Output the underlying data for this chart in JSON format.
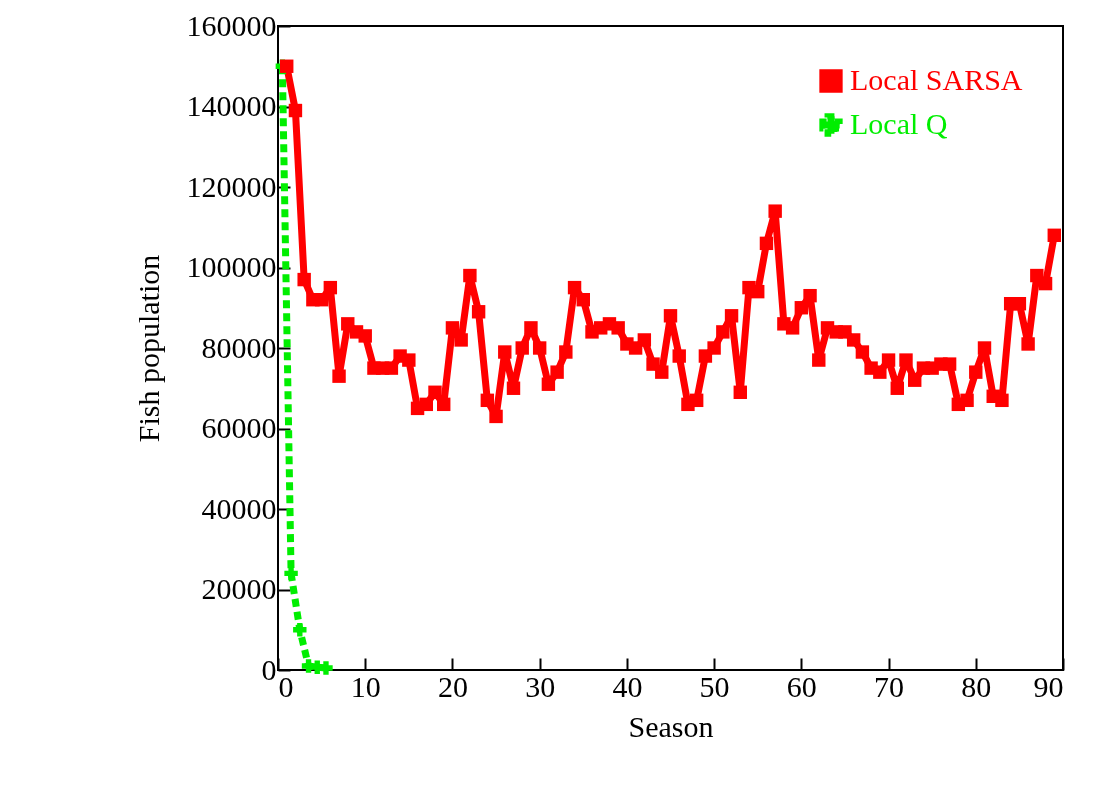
{
  "chart_data": {
    "type": "line",
    "xlabel": "Season",
    "ylabel": "Fish population",
    "xlim": [
      0,
      90
    ],
    "xticks": [
      0,
      10,
      20,
      30,
      40,
      50,
      60,
      70,
      80,
      90
    ],
    "ylim": [
      0,
      160000
    ],
    "yticks": [
      0,
      20000,
      40000,
      60000,
      80000,
      100000,
      120000,
      140000,
      160000
    ],
    "legend": "top right",
    "series": [
      {
        "name": "Local SARSA",
        "color": "#ff0000",
        "line_style": "solid",
        "marker": "square",
        "x": [
          1,
          2,
          3,
          4,
          5,
          6,
          7,
          8,
          9,
          10,
          11,
          12,
          13,
          14,
          15,
          16,
          17,
          18,
          19,
          20,
          21,
          22,
          23,
          24,
          25,
          26,
          27,
          28,
          29,
          30,
          31,
          32,
          33,
          34,
          35,
          36,
          37,
          38,
          39,
          40,
          41,
          42,
          43,
          44,
          45,
          46,
          47,
          48,
          49,
          50,
          51,
          52,
          53,
          54,
          55,
          56,
          57,
          58,
          59,
          60,
          61,
          62,
          63,
          64,
          65,
          66,
          67,
          68,
          69,
          70,
          71,
          72,
          73,
          74,
          75,
          76,
          77,
          78,
          79,
          80,
          81,
          82,
          83,
          84,
          85,
          86,
          87,
          88,
          89
        ],
        "values": [
          150000,
          139000,
          97000,
          92000,
          92000,
          95000,
          73000,
          86000,
          84000,
          83000,
          75000,
          75000,
          75000,
          78000,
          77000,
          65000,
          66000,
          69000,
          66000,
          85000,
          82000,
          98000,
          89000,
          67000,
          63000,
          79000,
          70000,
          80000,
          85000,
          80000,
          71000,
          74000,
          79000,
          95000,
          92000,
          84000,
          85000,
          86000,
          85000,
          81000,
          80000,
          82000,
          76000,
          74000,
          88000,
          78000,
          66000,
          67000,
          78000,
          80000,
          84000,
          88000,
          69000,
          95000,
          94000,
          106000,
          114000,
          86000,
          85000,
          90000,
          93000,
          77000,
          85000,
          84000,
          84000,
          82000,
          79000,
          75000,
          74000,
          77000,
          70000,
          77000,
          72000,
          75000,
          75000,
          76000,
          76000,
          66000,
          67000,
          74000,
          80000,
          68000,
          67000,
          91000,
          91000,
          81000,
          98000,
          96000,
          108000
        ]
      },
      {
        "name": "Local Q",
        "color": "#00ee00",
        "line_style": "dashed",
        "marker": "cross",
        "x": [
          0.5,
          1.5,
          2.5,
          3.5,
          4.5,
          5.5
        ],
        "values": [
          150000,
          24000,
          10000,
          1000,
          700,
          500
        ]
      }
    ]
  }
}
